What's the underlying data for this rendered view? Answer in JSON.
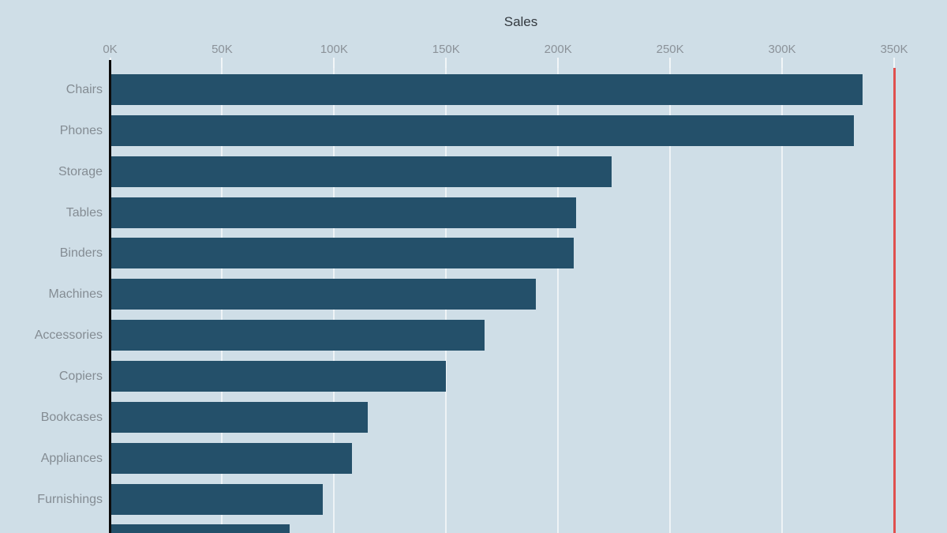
{
  "title": "Sales",
  "chart_data": {
    "type": "bar",
    "orientation": "horizontal",
    "title": "Sales",
    "xlabel": "Sales",
    "ylabel": "",
    "unit": "K",
    "categories": [
      "Chairs",
      "Phones",
      "Storage",
      "Tables",
      "Binders",
      "Machines",
      "Accessories",
      "Copiers",
      "Bookcases",
      "Appliances",
      "Furnishings",
      ""
    ],
    "values": [
      336,
      332,
      224,
      208,
      207,
      190,
      167,
      150,
      115,
      108,
      95,
      80
    ],
    "x_ticks": [
      "0K",
      "50K",
      "100K",
      "150K",
      "200K",
      "250K",
      "300K",
      "350K"
    ],
    "x_tick_values": [
      0,
      50,
      100,
      150,
      200,
      250,
      300,
      350
    ],
    "xlim": [
      0,
      350
    ],
    "grid": true,
    "legend": "none",
    "reference_line": {
      "value": 350,
      "color": "#e0504e"
    },
    "colors": {
      "bar": "#24506a",
      "background": "#cfdee7",
      "gridline": "#eef3f6",
      "tick": "#f2f6f8",
      "axis_line": "#0b0b0b",
      "title_text": "#33393f",
      "axis_text": "#8b9299",
      "category_text": "#848c93"
    }
  }
}
